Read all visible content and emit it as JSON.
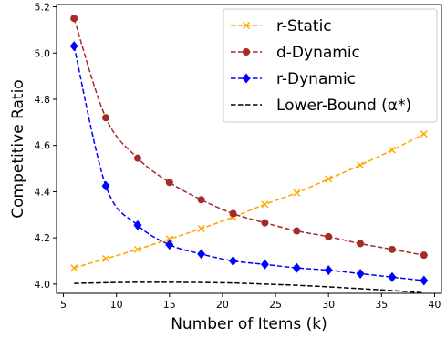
{
  "chart_data": {
    "type": "line",
    "xlabel": "Number of Items (k)",
    "ylabel": "Competitive Ratio",
    "xlim": [
      4.35,
      40.65
    ],
    "ylim": [
      3.96,
      5.21
    ],
    "xticks": [
      5,
      10,
      15,
      20,
      25,
      30,
      35,
      40
    ],
    "yticks": [
      4.0,
      4.2,
      4.4,
      4.6,
      4.8,
      5.0,
      5.2
    ],
    "ytick_labels": [
      "4.0",
      "4.2",
      "4.4",
      "4.6",
      "4.8",
      "5.0",
      "5.2"
    ],
    "grid": false,
    "legend_position": "top-right",
    "legend_labels": [
      "r-Static",
      "d-Dynamic",
      "r-Dynamic",
      "Lower-Bound (α*)"
    ],
    "series": [
      {
        "name": "r-Static",
        "color": "#FFA500",
        "marker": "x",
        "style": "dashed",
        "x": [
          6,
          9,
          12,
          15,
          18,
          21,
          24,
          27,
          30,
          33,
          36,
          39
        ],
        "values": [
          4.07,
          4.11,
          4.15,
          4.195,
          4.24,
          4.29,
          4.345,
          4.395,
          4.455,
          4.515,
          4.58,
          4.65
        ]
      },
      {
        "name": "d-Dynamic",
        "color": "#A52A2A",
        "marker": "circle",
        "style": "dashed",
        "x": [
          6,
          9,
          12,
          15,
          18,
          21,
          24,
          27,
          30,
          33,
          36,
          39
        ],
        "values": [
          5.15,
          4.72,
          4.545,
          4.44,
          4.365,
          4.305,
          4.265,
          4.23,
          4.205,
          4.175,
          4.15,
          4.125
        ]
      },
      {
        "name": "r-Dynamic",
        "color": "#0000FF",
        "marker": "diamond",
        "style": "dashed",
        "x": [
          6,
          9,
          12,
          15,
          18,
          21,
          24,
          27,
          30,
          33,
          36,
          39
        ],
        "values": [
          5.03,
          4.425,
          4.255,
          4.17,
          4.13,
          4.1,
          4.085,
          4.07,
          4.06,
          4.045,
          4.03,
          4.015
        ]
      },
      {
        "name": "Lower-Bound (α*)",
        "color": "#000000",
        "marker": "none",
        "style": "dashed",
        "x": [
          6,
          9,
          12,
          15,
          18,
          21,
          24,
          27,
          30,
          33,
          36,
          39
        ],
        "values": [
          4.003,
          4.006,
          4.008,
          4.008,
          4.007,
          4.005,
          4.0,
          3.995,
          3.988,
          3.98,
          3.972,
          3.962
        ]
      }
    ]
  }
}
